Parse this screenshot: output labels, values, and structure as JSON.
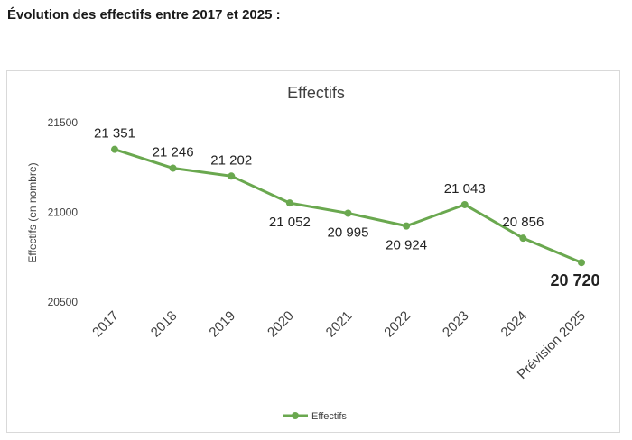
{
  "page": {
    "heading": "Évolution des effectifs entre 2017 et 2025 :"
  },
  "colors": {
    "series": "#6aa84f",
    "grid": "#d9d9d9",
    "text": "#404040"
  },
  "chart_data": {
    "type": "line",
    "title": "Effectifs",
    "xlabel": "",
    "ylabel": "Effectifs (en nombre)",
    "ylim": [
      20500,
      21500
    ],
    "yticks": [
      20500,
      21000,
      21500
    ],
    "grid": false,
    "legend_position": "bottom-center",
    "categories": [
      "2017",
      "2018",
      "2019",
      "2020",
      "2021",
      "2022",
      "2023",
      "2024",
      "Prévision 2025"
    ],
    "series": [
      {
        "name": "Effectifs",
        "values": [
          21351,
          21246,
          21202,
          21052,
          20995,
          20924,
          21043,
          20856,
          20720
        ],
        "labels": [
          "21 351",
          "21 246",
          "21 202",
          "21 052",
          "20 995",
          "20 924",
          "21 043",
          "20 856",
          "20 720"
        ]
      }
    ]
  }
}
